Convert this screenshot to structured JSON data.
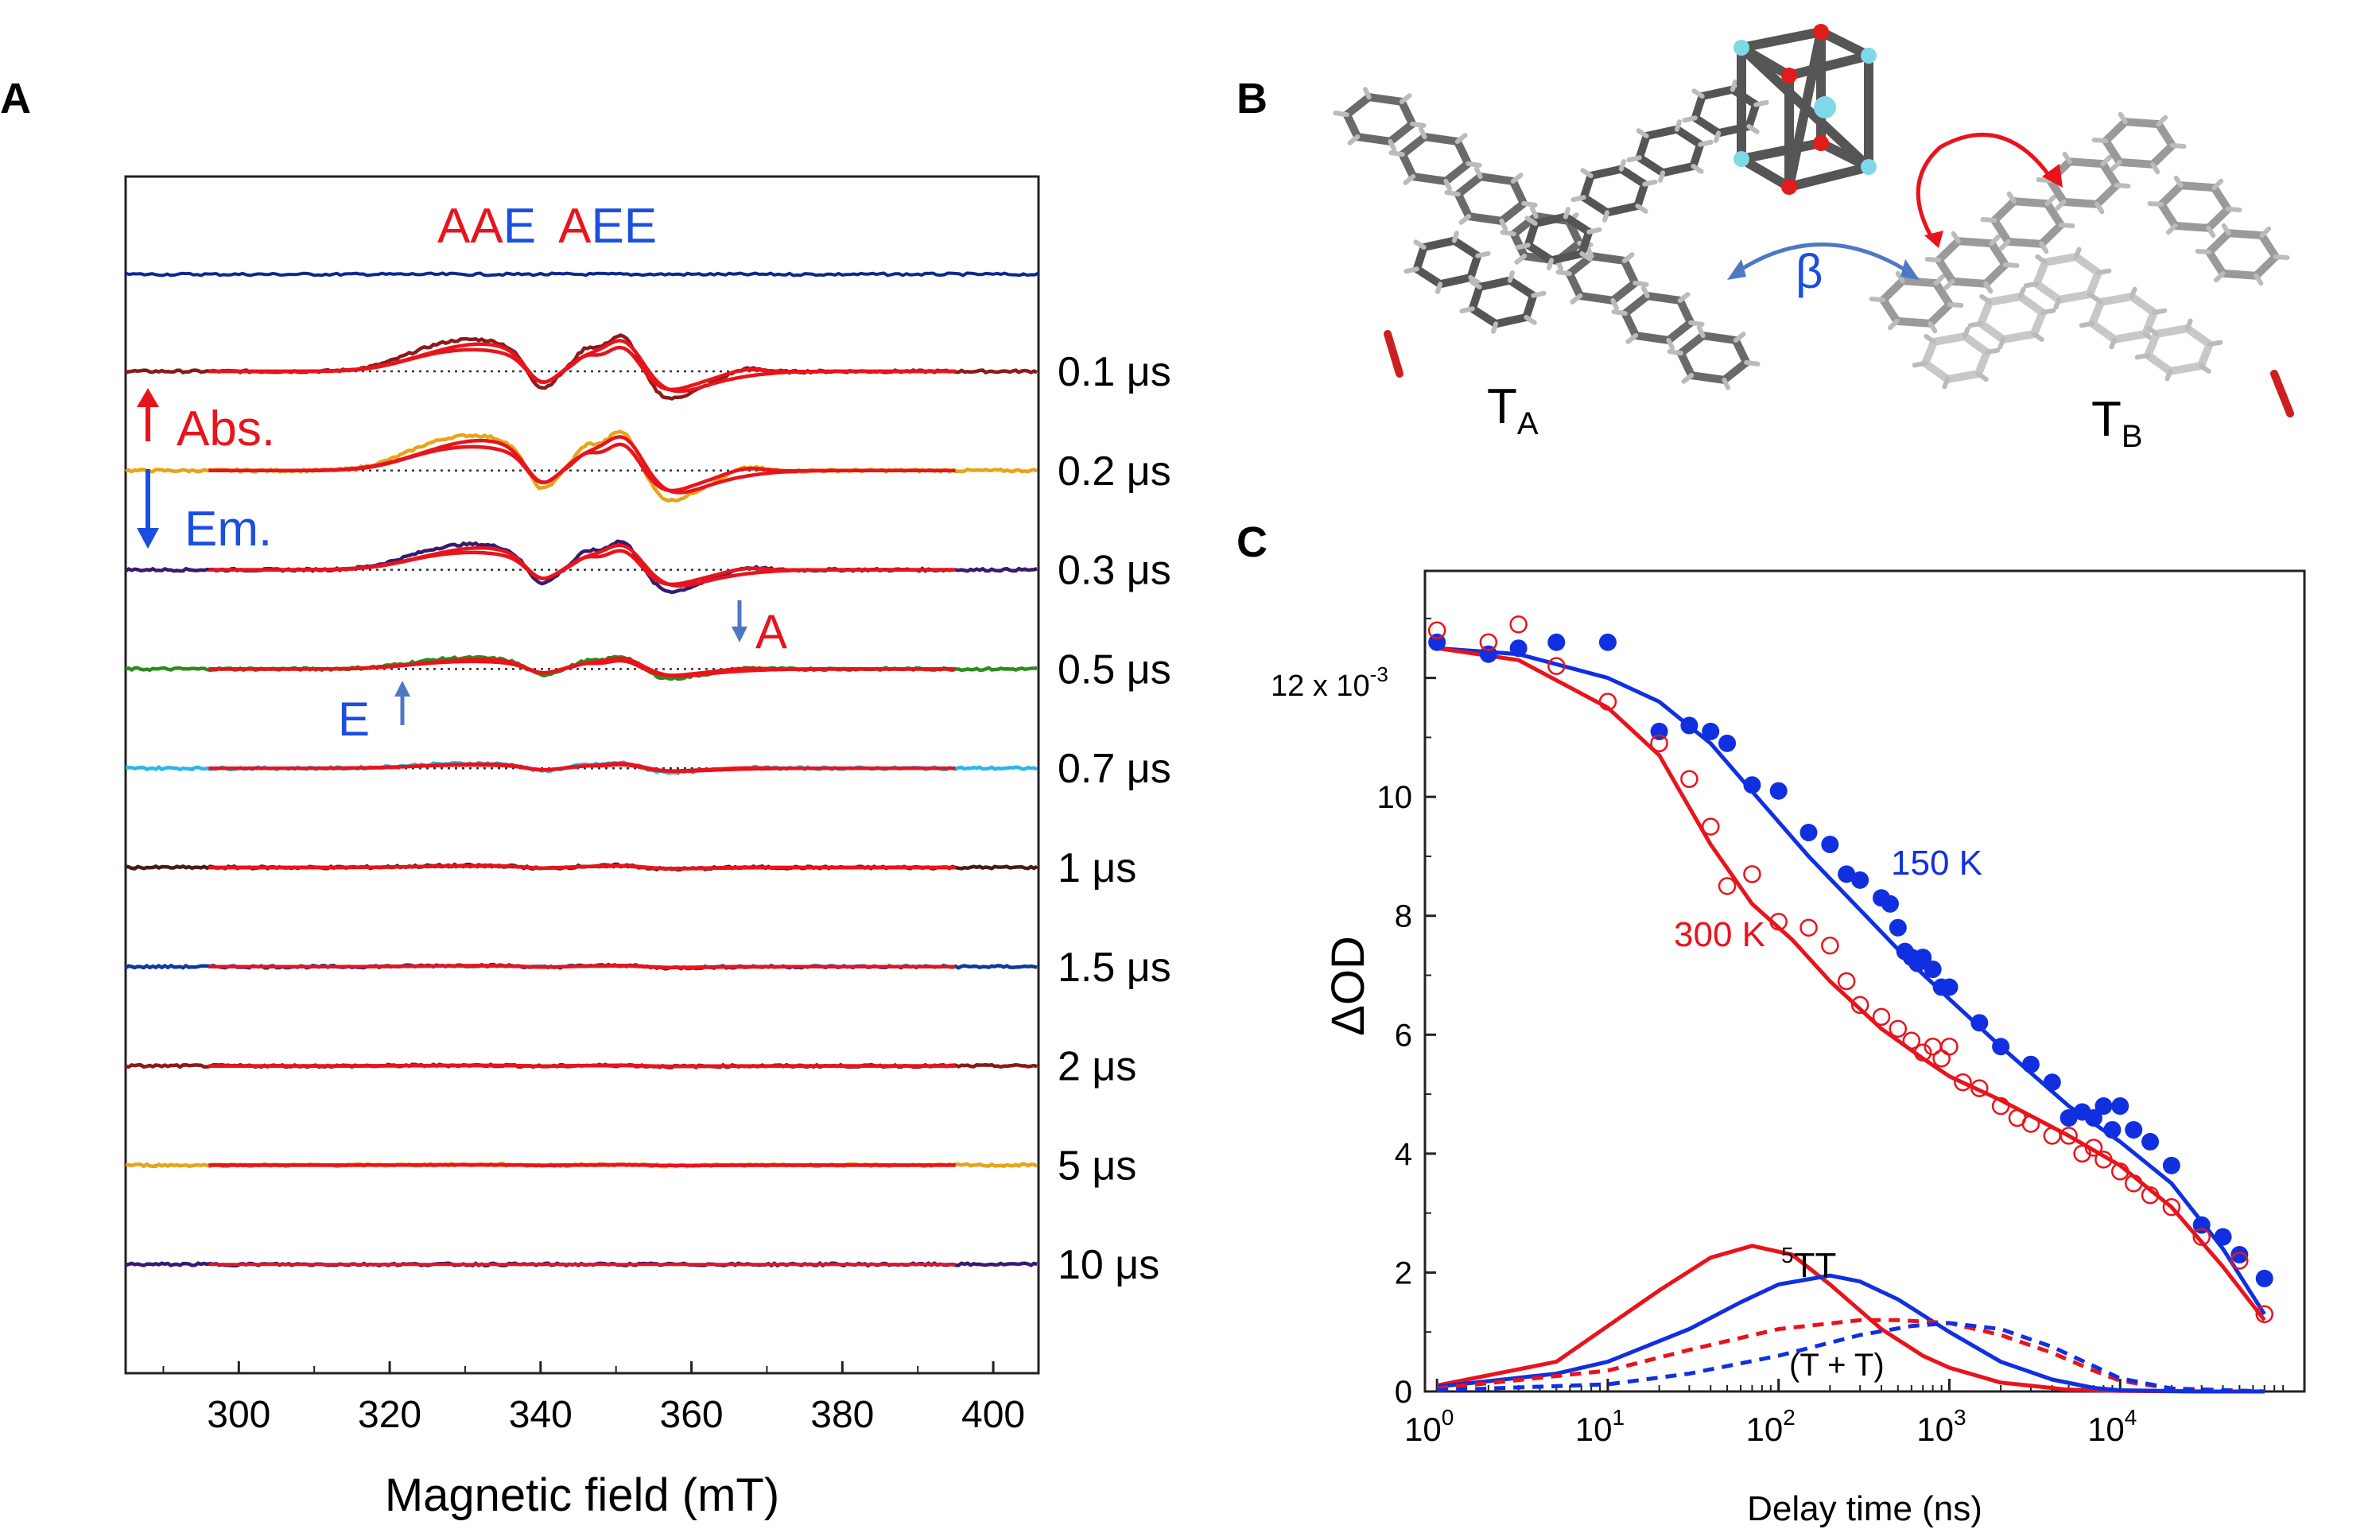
{
  "panel_labels": {
    "a": "A",
    "b": "B",
    "c": "C"
  },
  "panel_a": {
    "header": {
      "part1": "AA",
      "part2": "E",
      "part3": "A",
      "part4": "EE"
    },
    "trace_labels": [
      "0.1 μs",
      "0.2 μs",
      "0.3 μs",
      "0.5 μs",
      "0.7 μs",
      "1 μs",
      "1.5 μs",
      "2 μs",
      "5 μs",
      "10 μs"
    ],
    "abs_label": "Abs.",
    "em_label": "Em.",
    "marker_a": "A",
    "marker_e": "E",
    "colors": {
      "absorption": "#e8141c",
      "emission": "#1a4fe0",
      "fit": "#e8141c",
      "arrow": "#4f78c4"
    }
  },
  "panel_b": {
    "beta": "β",
    "ta": "T",
    "ta_sub": "A",
    "tb": "T",
    "tb_sub": "B"
  },
  "panel_c": {
    "label_150": "150 K",
    "label_300": "300 K",
    "label_5tt": "TT",
    "label_5tt_sup": "5",
    "label_tt": "(T + T)",
    "y_exp_label": "12 x 10",
    "y_exp_sup": "-3",
    "colors": {
      "k150": "#1030e0",
      "k300": "#e8141c"
    }
  },
  "chart_data": [
    {
      "type": "line",
      "xlabel": "Magnetic field (mT)",
      "ylabel": "",
      "xlim": [
        285,
        406
      ],
      "x_ticks": [
        "300",
        "320",
        "340",
        "360",
        "380",
        "400"
      ],
      "series": [
        {
          "name": "0.1 μs",
          "color": "#8b1a1a",
          "amp": 1.0
        },
        {
          "name": "0.2 μs",
          "color": "#e8a317",
          "amp": 1.1
        },
        {
          "name": "0.3 μs",
          "color": "#3a1a6e",
          "amp": 0.8
        },
        {
          "name": "0.5 μs",
          "color": "#2e8b20",
          "amp": 0.35
        },
        {
          "name": "0.7 μs",
          "color": "#2bb6e8",
          "amp": 0.15
        },
        {
          "name": "1 μs",
          "color": "#4a1a1a",
          "amp": 0.06
        },
        {
          "name": "1.5 μs",
          "color": "#0a3aa0",
          "amp": 0.04
        },
        {
          "name": "2 μs",
          "color": "#8b1a1a",
          "amp": 0.02
        },
        {
          "name": "5 μs",
          "color": "#e8a317",
          "amp": 0.015
        },
        {
          "name": "10 μs",
          "color": "#3a1a6e",
          "amp": 0.0
        }
      ]
    },
    {
      "type": "scatter",
      "xlabel": "Delay time (ns)",
      "ylabel": "ΔOD",
      "xscale": "log",
      "xlim": [
        0.85,
        120000
      ],
      "ylim": [
        0,
        13.8
      ],
      "x_ticks": [
        {
          "value": 1,
          "base": "10",
          "exp": "0"
        },
        {
          "value": 10,
          "base": "10",
          "exp": "1"
        },
        {
          "value": 100,
          "base": "10",
          "exp": "2"
        },
        {
          "value": 1000,
          "base": "10",
          "exp": "3"
        },
        {
          "value": 10000,
          "base": "10",
          "exp": "4"
        }
      ],
      "y_ticks": [
        {
          "value": 0,
          "label": "0"
        },
        {
          "value": 2,
          "label": "2"
        },
        {
          "value": 4,
          "label": "4"
        },
        {
          "value": 6,
          "label": "6"
        },
        {
          "value": 8,
          "label": "8"
        },
        {
          "value": 10,
          "label": "10"
        }
      ],
      "series": [
        {
          "name": "150 K",
          "marker": "filled-circle",
          "color": "#1030e0",
          "x": [
            1,
            2,
            3,
            5,
            10,
            20,
            30,
            40,
            50,
            70,
            100,
            150,
            200,
            250,
            300,
            400,
            450,
            500,
            550,
            600,
            650,
            700,
            800,
            900,
            1000,
            1500,
            2000,
            3000,
            4000,
            5000,
            6000,
            7000,
            8000,
            9000,
            10000,
            12000,
            15000,
            20000,
            30000,
            40000,
            50000,
            70000
          ],
          "y": [
            12.6,
            12.4,
            12.5,
            12.6,
            12.6,
            11.1,
            11.2,
            11.1,
            10.9,
            10.2,
            10.1,
            9.4,
            9.2,
            8.7,
            8.6,
            8.3,
            8.2,
            7.8,
            7.4,
            7.3,
            7.2,
            7.3,
            7.1,
            6.8,
            6.8,
            6.2,
            5.8,
            5.5,
            5.2,
            4.6,
            4.7,
            4.6,
            4.8,
            4.4,
            4.8,
            4.4,
            4.2,
            3.8,
            2.8,
            2.6,
            2.3,
            1.9
          ]
        },
        {
          "name": "300 K",
          "marker": "open-circle",
          "color": "#e8141c",
          "x": [
            1,
            2,
            3,
            5,
            10,
            20,
            30,
            40,
            50,
            70,
            100,
            150,
            200,
            250,
            300,
            400,
            500,
            600,
            700,
            800,
            900,
            1000,
            1200,
            1500,
            2000,
            2500,
            3000,
            4000,
            5000,
            6000,
            7000,
            8000,
            10000,
            12000,
            15000,
            20000,
            30000,
            50000,
            70000
          ],
          "y": [
            12.8,
            12.6,
            12.9,
            12.2,
            11.6,
            10.9,
            10.3,
            9.5,
            8.5,
            8.7,
            7.9,
            7.8,
            7.5,
            6.9,
            6.5,
            6.3,
            6.1,
            5.9,
            5.7,
            5.8,
            5.6,
            5.8,
            5.2,
            5.1,
            4.8,
            4.6,
            4.5,
            4.3,
            4.3,
            4.0,
            4.1,
            3.9,
            3.7,
            3.5,
            3.3,
            3.1,
            2.6,
            2.2,
            1.3
          ]
        },
        {
          "name": "150 K fit",
          "color": "#1030e0",
          "x": [
            1,
            3,
            10,
            20,
            40,
            80,
            150,
            300,
            600,
            1000,
            2000,
            5000,
            10000,
            20000,
            40000,
            70000
          ],
          "y": [
            12.5,
            12.4,
            12.0,
            11.6,
            10.9,
            9.9,
            9.0,
            8.1,
            7.2,
            6.6,
            5.8,
            4.8,
            4.2,
            3.5,
            2.4,
            1.3
          ]
        },
        {
          "name": "300 K fit",
          "color": "#e8141c",
          "x": [
            1,
            3,
            10,
            20,
            40,
            70,
            120,
            200,
            400,
            700,
            1000,
            2000,
            5000,
            10000,
            20000,
            40000,
            70000
          ],
          "y": [
            12.5,
            12.3,
            11.5,
            10.7,
            9.2,
            8.2,
            7.6,
            6.9,
            6.1,
            5.6,
            5.3,
            4.9,
            4.3,
            3.8,
            3.1,
            2.1,
            1.2
          ]
        },
        {
          "name": "5TT 300 K",
          "color": "#e8141c",
          "x": [
            1,
            5,
            10,
            20,
            40,
            70,
            120,
            200,
            400,
            700,
            1000,
            2000,
            5000,
            10000,
            30000,
            70000
          ],
          "y": [
            0.1,
            0.5,
            1.1,
            1.7,
            2.25,
            2.45,
            2.3,
            1.8,
            1.05,
            0.6,
            0.4,
            0.15,
            0.03,
            0.01,
            0.0,
            0.0
          ]
        },
        {
          "name": "5TT 150 K",
          "color": "#1030e0",
          "x": [
            1,
            5,
            10,
            30,
            60,
            100,
            200,
            300,
            500,
            1000,
            2000,
            4000,
            7000,
            10000,
            30000,
            70000
          ],
          "y": [
            0.08,
            0.3,
            0.5,
            1.05,
            1.5,
            1.8,
            1.95,
            1.85,
            1.55,
            1.0,
            0.5,
            0.2,
            0.06,
            0.02,
            0.0,
            0.0
          ]
        },
        {
          "name": "(T+T) 300 K",
          "color": "#e8141c",
          "dash": true,
          "x": [
            1,
            10,
            30,
            100,
            300,
            500,
            1000,
            2000,
            4000,
            7000,
            10000,
            20000,
            70000
          ],
          "y": [
            0.05,
            0.35,
            0.7,
            1.05,
            1.2,
            1.2,
            1.15,
            0.95,
            0.65,
            0.35,
            0.18,
            0.05,
            0.0
          ]
        },
        {
          "name": "(T+T) 150 K",
          "color": "#1030e0",
          "dash": true,
          "x": [
            1,
            10,
            30,
            100,
            300,
            600,
            1000,
            2000,
            4000,
            8000,
            10000,
            20000,
            70000
          ],
          "y": [
            0.02,
            0.12,
            0.3,
            0.6,
            0.95,
            1.1,
            1.15,
            1.05,
            0.75,
            0.35,
            0.22,
            0.05,
            0.0
          ]
        }
      ]
    }
  ]
}
